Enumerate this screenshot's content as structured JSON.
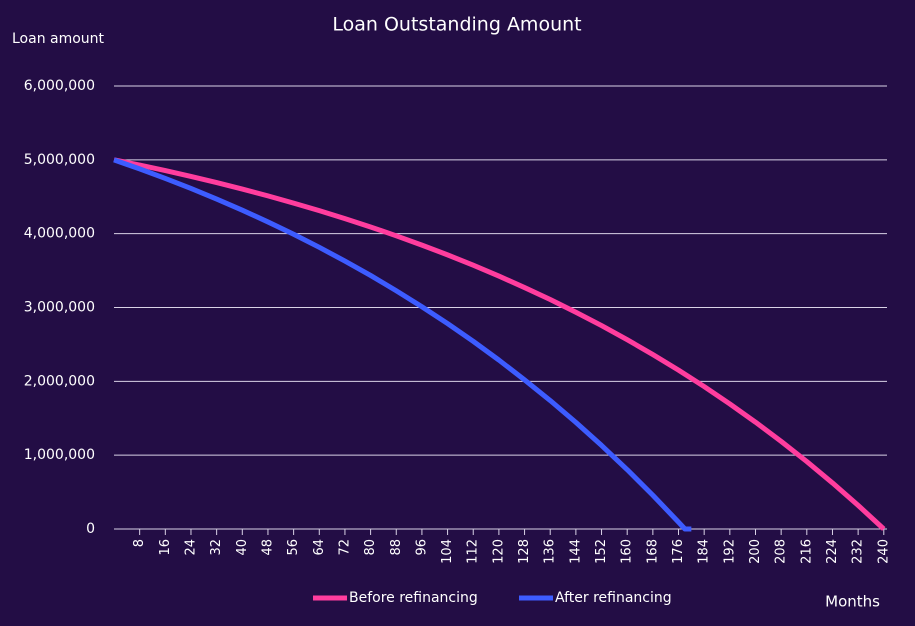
{
  "chart_data": {
    "type": "line",
    "title": "Loan Outstanding Amount",
    "y_label": "Loan amount",
    "x_label": "Months",
    "series": [
      {
        "name": "Before refinancing",
        "color": "#ff3d9e",
        "x": [
          0,
          8,
          16,
          24,
          32,
          40,
          48,
          56,
          64,
          72,
          80,
          88,
          96,
          104,
          112,
          120,
          128,
          136,
          144,
          152,
          160,
          168,
          176,
          184,
          192,
          200,
          208,
          216,
          224,
          232,
          240
        ],
        "values": [
          5000000,
          4929000,
          4854000,
          4775000,
          4692000,
          4604000,
          4512000,
          4414000,
          4312000,
          4204000,
          4091000,
          3971000,
          3845000,
          3713000,
          3573000,
          3426000,
          3270000,
          3108000,
          2936000,
          2755000,
          2564000,
          2363000,
          2152000,
          1929000,
          1694000,
          1447000,
          1187000,
          913000,
          624000,
          320000,
          0
        ]
      },
      {
        "name": "After refinancing",
        "color": "#3d5cff",
        "x": [
          0,
          8,
          16,
          24,
          32,
          40,
          48,
          56,
          64,
          72,
          80,
          88,
          96,
          104,
          112,
          120,
          128,
          136,
          144,
          152,
          160,
          168,
          176,
          178,
          180
        ],
        "values": [
          5000000,
          4877000,
          4748000,
          4612000,
          4469000,
          4318000,
          4159000,
          3992000,
          3815000,
          3629000,
          3434000,
          3227000,
          3010000,
          2782000,
          2542000,
          2288000,
          2020000,
          1740000,
          1444000,
          1132000,
          804000,
          457000,
          93000,
          0,
          0
        ]
      }
    ],
    "xlim": [
      0,
      241
    ],
    "xticks": [
      8,
      16,
      24,
      32,
      40,
      48,
      56,
      64,
      72,
      80,
      88,
      96,
      104,
      112,
      120,
      128,
      136,
      144,
      152,
      160,
      168,
      176,
      184,
      192,
      200,
      208,
      216,
      224,
      232,
      240
    ],
    "ylim": [
      0,
      6000000
    ],
    "yticks": [
      0,
      {
        "value": 1000000,
        "label": "1,000,000"
      },
      {
        "value": 2000000,
        "label": "2,000,000"
      },
      {
        "value": 3000000,
        "label": "3,000,000"
      },
      {
        "value": 4000000,
        "label": "4,000,000"
      },
      {
        "value": 5000000,
        "label": "5,000,000"
      },
      {
        "value": 6000000,
        "label": "6,000,000"
      }
    ],
    "grid": true,
    "legend": "bottom"
  }
}
